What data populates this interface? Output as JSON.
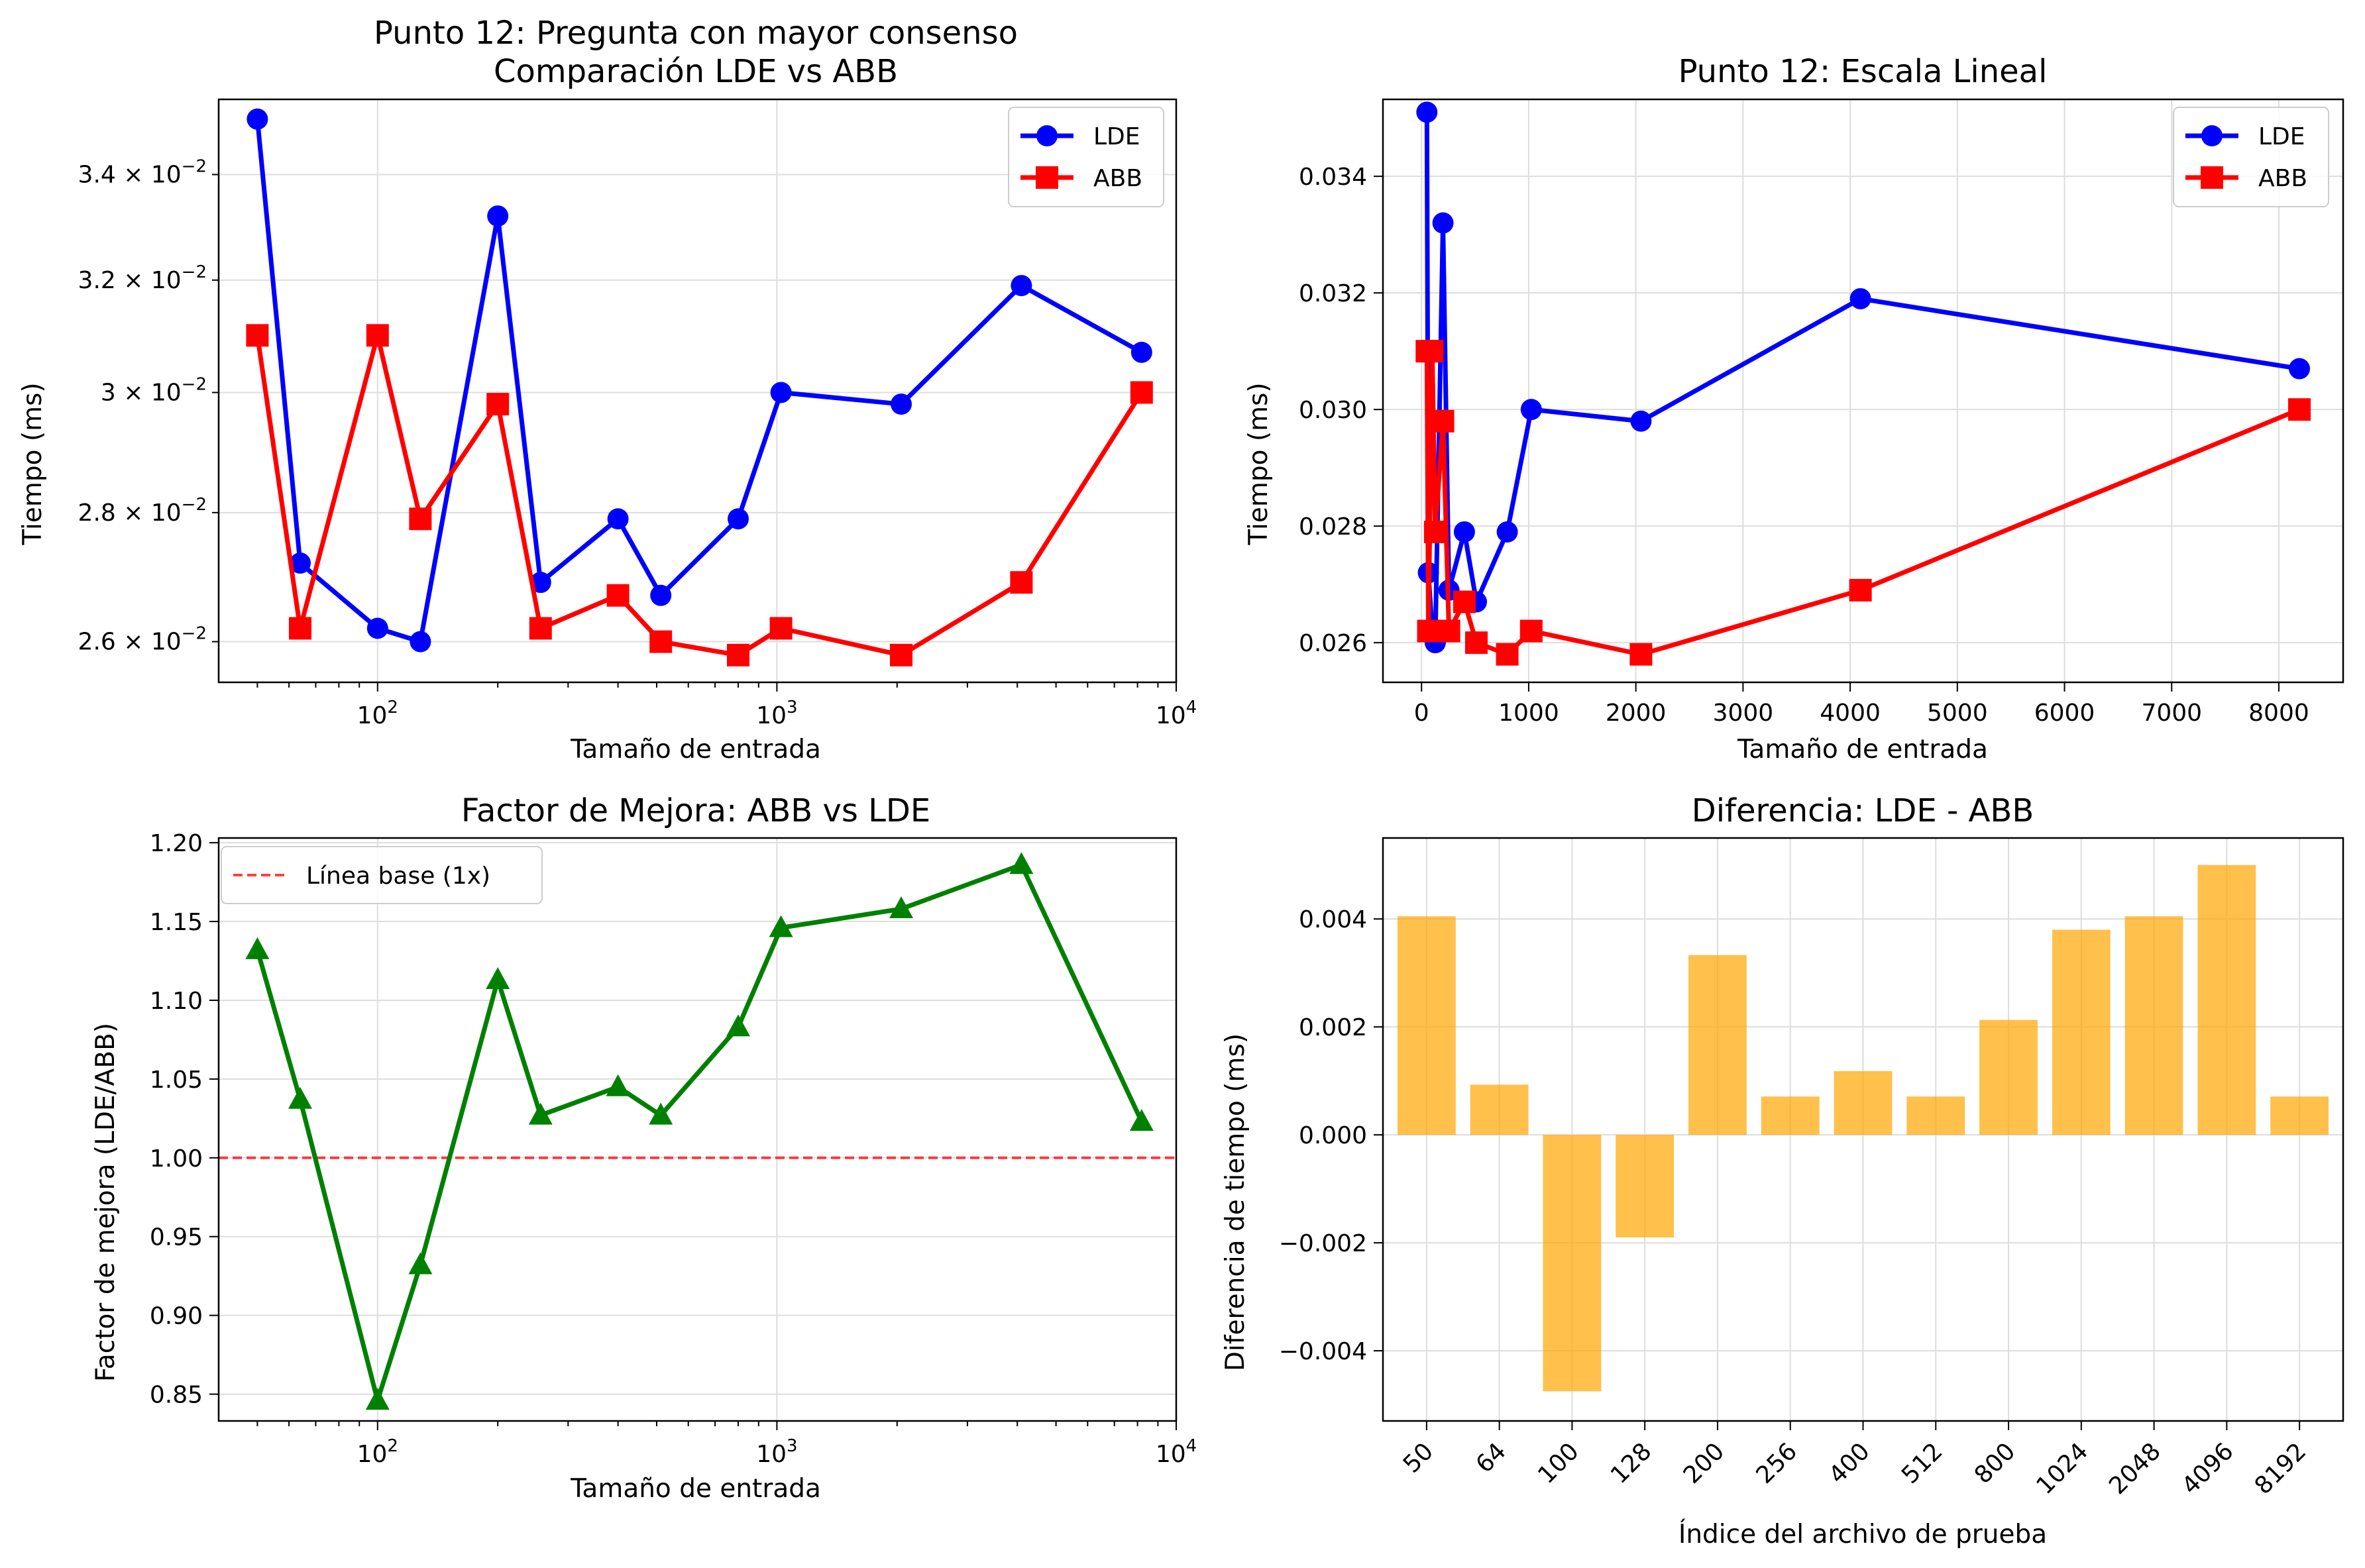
{
  "colors": {
    "lde": "#0000ff",
    "abb": "#ff0000",
    "factor": "#008000",
    "baseline": "#ff0000",
    "bar": "#ffa500",
    "grid": "#dddddd"
  },
  "chart_data": [
    {
      "type": "line",
      "title_line1": "Punto 12: Pregunta con mayor consenso",
      "title_line2": "Comparación LDE vs ABB",
      "xlabel": "Tamaño de entrada",
      "ylabel": "Tiempo (ms)",
      "xscale": "log",
      "yscale": "log",
      "xlim": [
        40,
        10000
      ],
      "ylim": [
        0.0254,
        0.0355
      ],
      "grid": true,
      "legend": "top-right",
      "xticks": [
        {
          "value": 100,
          "base": "10",
          "exp": "2"
        },
        {
          "value": 1000,
          "base": "10",
          "exp": "3"
        },
        {
          "value": 10000,
          "base": "10",
          "exp": "4"
        }
      ],
      "yticks": [
        {
          "value": 0.026,
          "mant": "2.6 × 10",
          "exp": "−2"
        },
        {
          "value": 0.028,
          "mant": "2.8 × 10",
          "exp": "−2"
        },
        {
          "value": 0.03,
          "mant": "3 × 10",
          "exp": "−2"
        },
        {
          "value": 0.032,
          "mant": "3.2 × 10",
          "exp": "−2"
        },
        {
          "value": 0.034,
          "mant": "3.4 × 10",
          "exp": "−2"
        }
      ],
      "x": [
        50,
        64,
        100,
        128,
        200,
        256,
        400,
        512,
        800,
        1024,
        2048,
        4096,
        8192
      ],
      "series": [
        {
          "name": "LDE",
          "marker": "circle",
          "values": [
            0.0351,
            0.0272,
            0.0262,
            0.026,
            0.0332,
            0.0269,
            0.0279,
            0.0267,
            0.0279,
            0.03,
            0.0298,
            0.0319,
            0.0307
          ]
        },
        {
          "name": "ABB",
          "marker": "square",
          "values": [
            0.031,
            0.0262,
            0.031,
            0.0279,
            0.0298,
            0.0262,
            0.0267,
            0.026,
            0.0258,
            0.0262,
            0.0258,
            0.0269,
            0.03
          ]
        }
      ]
    },
    {
      "type": "line",
      "title": "Punto 12: Escala Lineal",
      "xlabel": "Tamaño de entrada",
      "ylabel": "Tiempo (ms)",
      "xlim": [
        -360,
        8600
      ],
      "ylim": [
        0.02532,
        0.03532
      ],
      "grid": true,
      "legend": "top-right",
      "xticks": [
        "0",
        "1000",
        "2000",
        "3000",
        "4000",
        "5000",
        "6000",
        "7000",
        "8000"
      ],
      "yticks": [
        "0.026",
        "0.028",
        "0.030",
        "0.032",
        "0.034"
      ],
      "x": [
        50,
        64,
        100,
        128,
        200,
        256,
        400,
        512,
        800,
        1024,
        2048,
        4096,
        8192
      ],
      "series": [
        {
          "name": "LDE",
          "marker": "circle",
          "values": [
            0.0351,
            0.0272,
            0.0262,
            0.026,
            0.0332,
            0.0269,
            0.0279,
            0.0267,
            0.0279,
            0.03,
            0.0298,
            0.0319,
            0.0307
          ]
        },
        {
          "name": "ABB",
          "marker": "square",
          "values": [
            0.031,
            0.0262,
            0.031,
            0.0279,
            0.0298,
            0.0262,
            0.0267,
            0.026,
            0.0258,
            0.0262,
            0.0258,
            0.0269,
            0.03
          ]
        }
      ]
    },
    {
      "type": "line",
      "title": "Factor de Mejora: ABB vs LDE",
      "xlabel": "Tamaño de entrada",
      "ylabel": "Factor de mejora (LDE/ABB)",
      "xscale": "log",
      "xlim": [
        40,
        10000
      ],
      "ylim": [
        0.833,
        1.203
      ],
      "grid": true,
      "legend": "top-left",
      "xticks": [
        {
          "value": 100,
          "base": "10",
          "exp": "2"
        },
        {
          "value": 1000,
          "base": "10",
          "exp": "3"
        },
        {
          "value": 10000,
          "base": "10",
          "exp": "4"
        }
      ],
      "yticks": [
        "0.85",
        "0.90",
        "0.95",
        "1.00",
        "1.05",
        "1.10",
        "1.15",
        "1.20"
      ],
      "x": [
        50,
        64,
        100,
        128,
        200,
        256,
        400,
        512,
        800,
        1024,
        2048,
        4096,
        8192
      ],
      "series": [
        {
          "marker": "triangle",
          "values": [
            1.132,
            1.037,
            0.846,
            0.932,
            1.113,
            1.027,
            1.045,
            1.027,
            1.083,
            1.146,
            1.158,
            1.186,
            1.023
          ]
        }
      ],
      "baseline": {
        "name": "Línea base (1x)",
        "value": 1.0
      }
    },
    {
      "type": "bar",
      "title": "Diferencia: LDE - ABB",
      "xlabel": "Índice del archivo de prueba",
      "ylabel": "Diferencia de tiempo (ms)",
      "ylim": [
        -0.0053,
        0.0055
      ],
      "grid": true,
      "yticks": [
        "−0.004",
        "−0.002",
        "0.000",
        "0.002",
        "0.004"
      ],
      "categories": [
        "50",
        "64",
        "100",
        "128",
        "200",
        "256",
        "400",
        "512",
        "800",
        "1024",
        "2048",
        "4096",
        "8192"
      ],
      "values": [
        0.00405,
        0.00093,
        -0.00475,
        -0.0019,
        0.00333,
        0.00071,
        0.00118,
        0.00071,
        0.00213,
        0.0038,
        0.00405,
        0.005,
        0.00071
      ]
    }
  ]
}
